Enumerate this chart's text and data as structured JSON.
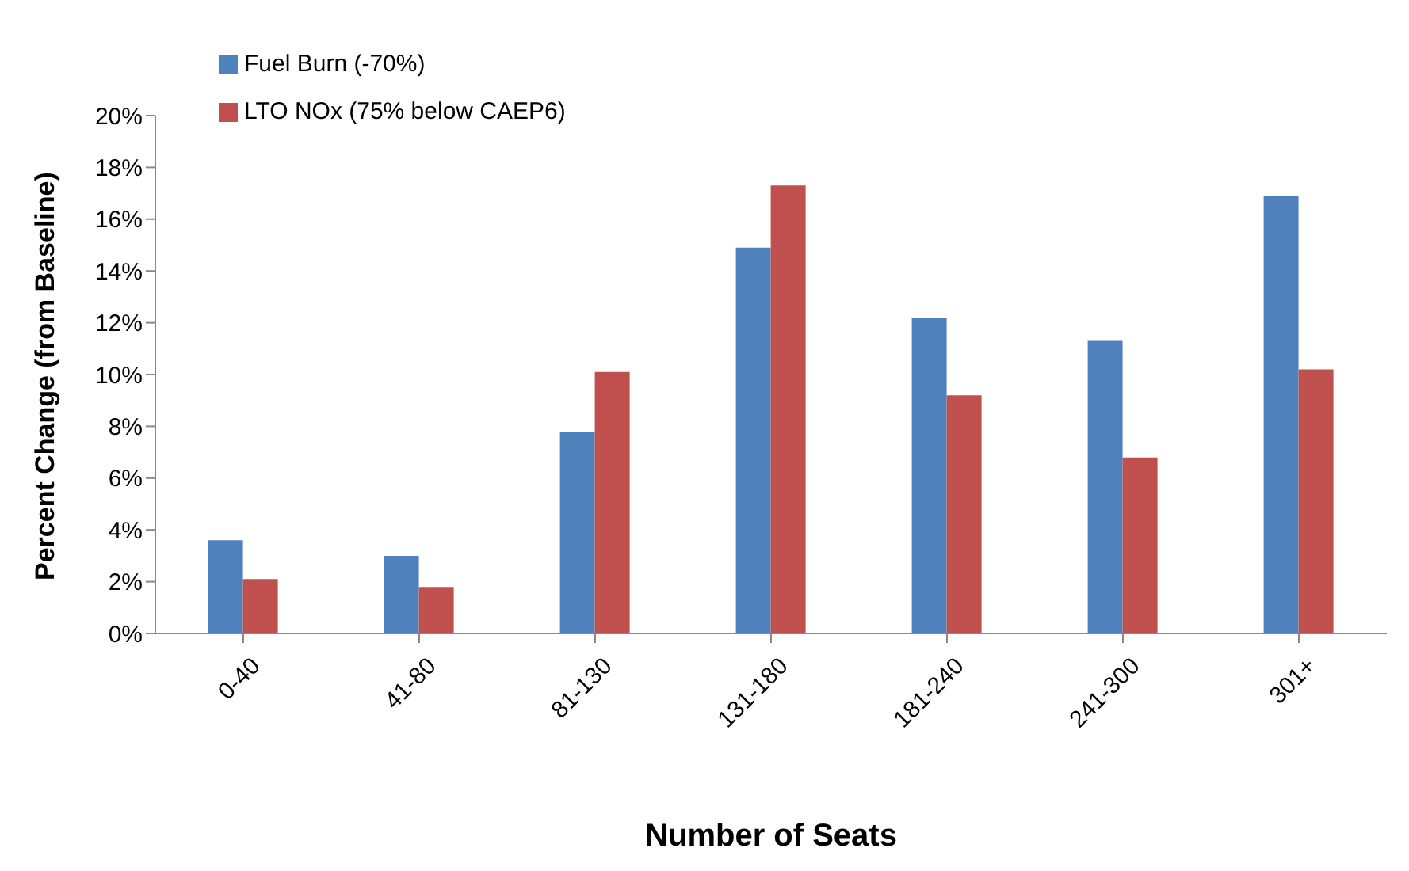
{
  "chart_data": {
    "type": "bar",
    "xlabel": "Number of Seats",
    "ylabel": "Percent Change (from Baseline)",
    "categories": [
      "0-40",
      "41-80",
      "81-130",
      "131-180",
      "181-240",
      "241-300",
      "301+"
    ],
    "series": [
      {
        "name": "Fuel Burn (-70%)",
        "color": "#4f81bd",
        "values": [
          3.6,
          3.0,
          7.8,
          14.9,
          12.2,
          11.3,
          16.9
        ]
      },
      {
        "name": "LTO NOx (75% below CAEP6)",
        "color": "#c0504d",
        "values": [
          2.1,
          1.8,
          10.1,
          17.3,
          9.2,
          6.8,
          10.2
        ]
      }
    ],
    "ylim": [
      0,
      20
    ],
    "yticks": [
      {
        "value": 0,
        "label": "0%"
      },
      {
        "value": 2,
        "label": "2%"
      },
      {
        "value": 4,
        "label": "4%"
      },
      {
        "value": 6,
        "label": "6%"
      },
      {
        "value": 8,
        "label": "8%"
      },
      {
        "value": 10,
        "label": "10%"
      },
      {
        "value": 12,
        "label": "12%"
      },
      {
        "value": 14,
        "label": "14%"
      },
      {
        "value": 16,
        "label": "16%"
      },
      {
        "value": 18,
        "label": "18%"
      },
      {
        "value": 20,
        "label": "20%"
      }
    ],
    "legend": "top left"
  }
}
